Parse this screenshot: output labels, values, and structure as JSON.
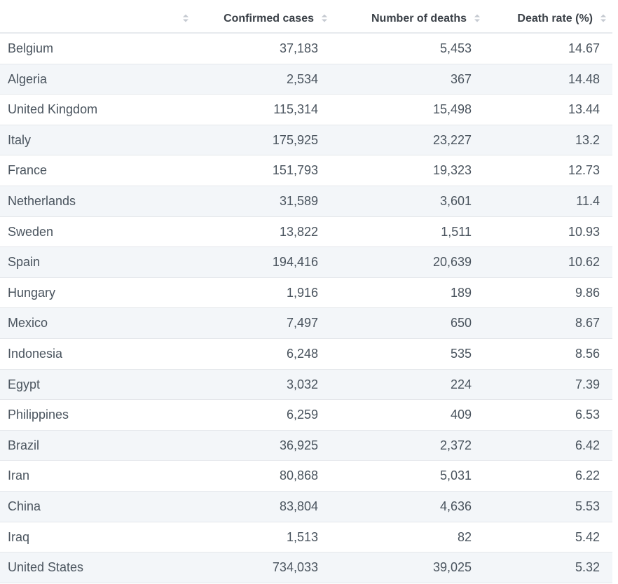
{
  "chart_data": {
    "type": "table",
    "columns": [
      "",
      "Confirmed cases",
      "Number of deaths",
      "Death rate (%)"
    ],
    "rows": [
      {
        "country": "Belgium",
        "cases": "37,183",
        "deaths": "5,453",
        "rate": "14.67"
      },
      {
        "country": "Algeria",
        "cases": "2,534",
        "deaths": "367",
        "rate": "14.48"
      },
      {
        "country": "United Kingdom",
        "cases": "115,314",
        "deaths": "15,498",
        "rate": "13.44"
      },
      {
        "country": "Italy",
        "cases": "175,925",
        "deaths": "23,227",
        "rate": "13.2"
      },
      {
        "country": "France",
        "cases": "151,793",
        "deaths": "19,323",
        "rate": "12.73"
      },
      {
        "country": "Netherlands",
        "cases": "31,589",
        "deaths": "3,601",
        "rate": "11.4"
      },
      {
        "country": "Sweden",
        "cases": "13,822",
        "deaths": "1,511",
        "rate": "10.93"
      },
      {
        "country": "Spain",
        "cases": "194,416",
        "deaths": "20,639",
        "rate": "10.62"
      },
      {
        "country": "Hungary",
        "cases": "1,916",
        "deaths": "189",
        "rate": "9.86"
      },
      {
        "country": "Mexico",
        "cases": "7,497",
        "deaths": "650",
        "rate": "8.67"
      },
      {
        "country": "Indonesia",
        "cases": "6,248",
        "deaths": "535",
        "rate": "8.56"
      },
      {
        "country": "Egypt",
        "cases": "3,032",
        "deaths": "224",
        "rate": "7.39"
      },
      {
        "country": "Philippines",
        "cases": "6,259",
        "deaths": "409",
        "rate": "6.53"
      },
      {
        "country": "Brazil",
        "cases": "36,925",
        "deaths": "2,372",
        "rate": "6.42"
      },
      {
        "country": "Iran",
        "cases": "80,868",
        "deaths": "5,031",
        "rate": "6.22"
      },
      {
        "country": "China",
        "cases": "83,804",
        "deaths": "4,636",
        "rate": "5.53"
      },
      {
        "country": "Iraq",
        "cases": "1,513",
        "deaths": "82",
        "rate": "5.42"
      },
      {
        "country": "United States",
        "cases": "734,033",
        "deaths": "39,025",
        "rate": "5.32"
      }
    ]
  },
  "colors": {
    "header_text": "#3b4148",
    "cell_text": "#4a545e",
    "row_alt_bg": "#f3f6f9",
    "border": "#e4e7eb",
    "sort_icon": "#c5cad1"
  },
  "icons": {
    "sort": "sort-up-down-icon"
  }
}
